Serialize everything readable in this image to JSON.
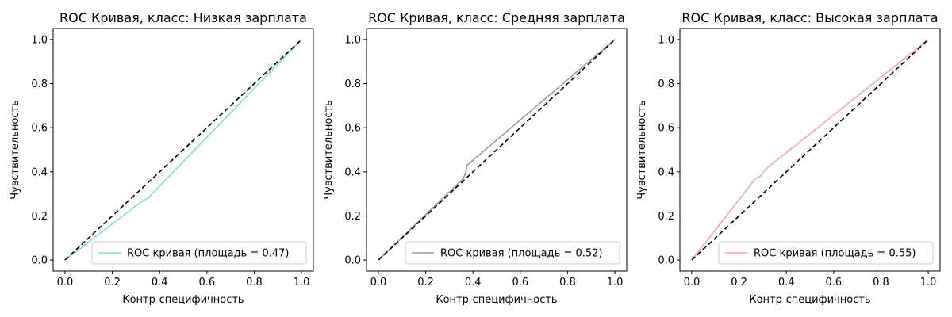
{
  "figure": {
    "background": "#ffffff"
  },
  "chart_data": [
    {
      "type": "line",
      "title": "ROC Кривая, класс: Низкая зарплата",
      "xlabel": "Контр-специфичность",
      "ylabel": "Чувствительность",
      "xlim": [
        -0.05,
        1.05
      ],
      "ylim": [
        -0.05,
        1.05
      ],
      "xticks": [
        "0.0",
        "0.2",
        "0.4",
        "0.6",
        "0.8",
        "1.0"
      ],
      "yticks": [
        "0.0",
        "0.2",
        "0.4",
        "0.6",
        "0.8",
        "1.0"
      ],
      "legend_position": "lower-right",
      "series": [
        {
          "name": "ROC кривая (площадь = 0.47)",
          "color": "#8ad8dd",
          "x": [
            0.0,
            0.33,
            0.35,
            1.0
          ],
          "y": [
            0.0,
            0.27,
            0.28,
            1.0
          ]
        }
      ],
      "diagonal": {
        "color": "#000000",
        "style": "dashed",
        "x": [
          0,
          1
        ],
        "y": [
          0,
          1
        ]
      }
    },
    {
      "type": "line",
      "title": "ROC Кривая, класс: Средняя зарплата",
      "xlabel": "Контр-специфичность",
      "ylabel": "Чувствительность",
      "xlim": [
        -0.05,
        1.05
      ],
      "ylim": [
        -0.05,
        1.05
      ],
      "xticks": [
        "0.0",
        "0.2",
        "0.4",
        "0.6",
        "0.8",
        "1.0"
      ],
      "yticks": [
        "0.0",
        "0.2",
        "0.4",
        "0.6",
        "0.8",
        "1.0"
      ],
      "legend_position": "lower-right",
      "series": [
        {
          "name": "ROC кривая (площадь = 0.52)",
          "color": "#9a97ab",
          "x": [
            0.0,
            0.36,
            0.37,
            0.375,
            1.0
          ],
          "y": [
            0.0,
            0.37,
            0.4,
            0.43,
            1.0
          ]
        }
      ],
      "diagonal": {
        "color": "#000000",
        "style": "dashed",
        "x": [
          0,
          1
        ],
        "y": [
          0,
          1
        ]
      }
    },
    {
      "type": "line",
      "title": "ROC Кривая, класс: Высокая зарплата",
      "xlabel": "Контр-специфичность",
      "ylabel": "Чувствительность",
      "xlim": [
        -0.05,
        1.05
      ],
      "ylim": [
        -0.05,
        1.05
      ],
      "xticks": [
        "0.0",
        "0.2",
        "0.4",
        "0.6",
        "0.8",
        "1.0"
      ],
      "yticks": [
        "0.0",
        "0.2",
        "0.4",
        "0.6",
        "0.8",
        "1.0"
      ],
      "legend_position": "lower-right",
      "series": [
        {
          "name": "ROC кривая (площадь = 0.55)",
          "color": "#f3a2c0",
          "x": [
            0.0,
            0.27,
            0.29,
            0.31,
            1.0
          ],
          "y": [
            0.0,
            0.37,
            0.38,
            0.41,
            1.0
          ]
        }
      ],
      "diagonal": {
        "color": "#000000",
        "style": "dashed",
        "x": [
          0,
          1
        ],
        "y": [
          0,
          1
        ]
      }
    }
  ]
}
